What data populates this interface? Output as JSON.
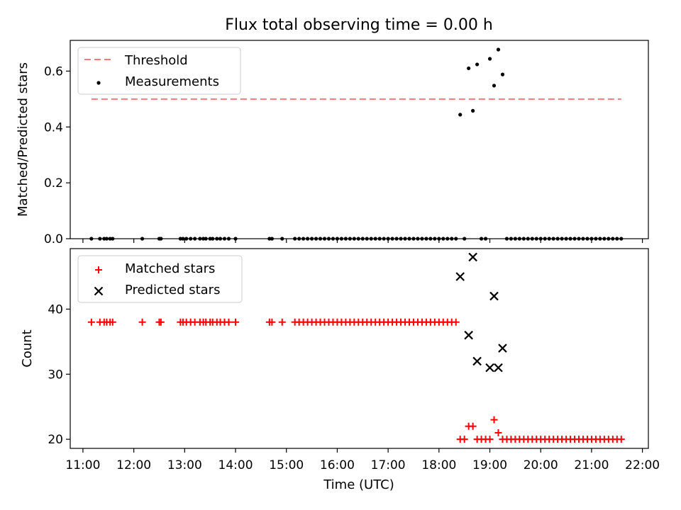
{
  "title": "Flux total observing time = 0.00 h",
  "xlabel": "Time (UTC)",
  "x_ticks": [
    "11:00",
    "12:00",
    "13:00",
    "14:00",
    "15:00",
    "16:00",
    "17:00",
    "18:00",
    "19:00",
    "20:00",
    "21:00",
    "22:00"
  ],
  "chart_data": [
    {
      "type": "scatter",
      "ylabel": "Matched/Predicted stars",
      "ylim": [
        0,
        0.71
      ],
      "yticks": [
        "0.0",
        "0.2",
        "0.4",
        "0.6"
      ],
      "legend": {
        "placement": "top-left",
        "entries": [
          "Threshold",
          "Measurements"
        ]
      },
      "threshold": {
        "name": "Threshold",
        "value": 0.5,
        "x": [
          "11:10",
          "21:35"
        ],
        "color": "#ff7777"
      },
      "series": [
        {
          "name": "Measurements",
          "color": "#000000",
          "points": [
            [
              "11:10",
              0
            ],
            [
              "11:20",
              0
            ],
            [
              "11:25",
              0
            ],
            [
              "11:28",
              0
            ],
            [
              "11:32",
              0
            ],
            [
              "11:35",
              0
            ],
            [
              "12:10",
              0
            ],
            [
              "12:30",
              0
            ],
            [
              "12:32",
              0
            ],
            [
              "12:55",
              0
            ],
            [
              "12:58",
              0
            ],
            [
              "13:02",
              0
            ],
            [
              "13:07",
              0
            ],
            [
              "13:12",
              0
            ],
            [
              "13:18",
              0
            ],
            [
              "13:22",
              0
            ],
            [
              "13:25",
              0
            ],
            [
              "13:30",
              0
            ],
            [
              "13:33",
              0
            ],
            [
              "13:38",
              0
            ],
            [
              "13:42",
              0
            ],
            [
              "13:47",
              0
            ],
            [
              "13:52",
              0
            ],
            [
              "14:00",
              0
            ],
            [
              "14:40",
              0
            ],
            [
              "14:43",
              0
            ],
            [
              "14:55",
              0
            ],
            [
              "15:10",
              0
            ],
            [
              "15:15",
              0
            ],
            [
              "15:20",
              0
            ],
            [
              "15:25",
              0
            ],
            [
              "15:30",
              0
            ],
            [
              "15:35",
              0
            ],
            [
              "15:40",
              0
            ],
            [
              "15:45",
              0
            ],
            [
              "15:50",
              0
            ],
            [
              "15:55",
              0
            ],
            [
              "16:00",
              0
            ],
            [
              "16:05",
              0
            ],
            [
              "16:10",
              0
            ],
            [
              "16:15",
              0
            ],
            [
              "16:20",
              0
            ],
            [
              "16:25",
              0
            ],
            [
              "16:30",
              0
            ],
            [
              "16:35",
              0
            ],
            [
              "16:40",
              0
            ],
            [
              "16:45",
              0
            ],
            [
              "16:50",
              0
            ],
            [
              "16:55",
              0
            ],
            [
              "17:00",
              0
            ],
            [
              "17:05",
              0
            ],
            [
              "17:10",
              0
            ],
            [
              "17:15",
              0
            ],
            [
              "17:20",
              0
            ],
            [
              "17:25",
              0
            ],
            [
              "17:30",
              0
            ],
            [
              "17:35",
              0
            ],
            [
              "17:40",
              0
            ],
            [
              "17:45",
              0
            ],
            [
              "17:50",
              0
            ],
            [
              "17:55",
              0
            ],
            [
              "18:00",
              0
            ],
            [
              "18:05",
              0
            ],
            [
              "18:10",
              0
            ],
            [
              "18:15",
              0
            ],
            [
              "18:20",
              0
            ],
            [
              "18:25",
              0.444
            ],
            [
              "18:30",
              0
            ],
            [
              "18:35",
              0.61
            ],
            [
              "18:40",
              0.458
            ],
            [
              "18:45",
              0.624
            ],
            [
              "18:50",
              0
            ],
            [
              "18:55",
              0
            ],
            [
              "19:00",
              0.644
            ],
            [
              "19:05",
              0.548
            ],
            [
              "19:10",
              0.677
            ],
            [
              "19:15",
              0.588
            ],
            [
              "19:20",
              0
            ],
            [
              "19:25",
              0
            ],
            [
              "19:30",
              0
            ],
            [
              "19:35",
              0
            ],
            [
              "19:40",
              0
            ],
            [
              "19:45",
              0
            ],
            [
              "19:50",
              0
            ],
            [
              "19:55",
              0
            ],
            [
              "20:00",
              0
            ],
            [
              "20:05",
              0
            ],
            [
              "20:10",
              0
            ],
            [
              "20:15",
              0
            ],
            [
              "20:20",
              0
            ],
            [
              "20:25",
              0
            ],
            [
              "20:30",
              0
            ],
            [
              "20:35",
              0
            ],
            [
              "20:40",
              0
            ],
            [
              "20:45",
              0
            ],
            [
              "20:50",
              0
            ],
            [
              "20:55",
              0
            ],
            [
              "21:00",
              0
            ],
            [
              "21:05",
              0
            ],
            [
              "21:10",
              0
            ],
            [
              "21:15",
              0
            ],
            [
              "21:20",
              0
            ],
            [
              "21:25",
              0
            ],
            [
              "21:30",
              0
            ],
            [
              "21:35",
              0
            ]
          ]
        }
      ]
    },
    {
      "type": "scatter",
      "ylabel": "Count",
      "ylim": [
        18.6,
        49.3
      ],
      "yticks": [
        "20",
        "30",
        "40"
      ],
      "legend": {
        "placement": "top-left",
        "entries": [
          "Matched stars",
          "Predicted stars"
        ]
      },
      "series": [
        {
          "name": "Matched stars",
          "marker": "+",
          "color": "#ff0000",
          "points": [
            [
              "11:10",
              38
            ],
            [
              "11:20",
              38
            ],
            [
              "11:25",
              38
            ],
            [
              "11:28",
              38
            ],
            [
              "11:32",
              38
            ],
            [
              "11:35",
              38
            ],
            [
              "12:10",
              38
            ],
            [
              "12:30",
              38
            ],
            [
              "12:32",
              38
            ],
            [
              "12:55",
              38
            ],
            [
              "12:58",
              38
            ],
            [
              "13:02",
              38
            ],
            [
              "13:07",
              38
            ],
            [
              "13:12",
              38
            ],
            [
              "13:18",
              38
            ],
            [
              "13:22",
              38
            ],
            [
              "13:25",
              38
            ],
            [
              "13:30",
              38
            ],
            [
              "13:33",
              38
            ],
            [
              "13:38",
              38
            ],
            [
              "13:42",
              38
            ],
            [
              "13:47",
              38
            ],
            [
              "13:52",
              38
            ],
            [
              "14:00",
              38
            ],
            [
              "14:40",
              38
            ],
            [
              "14:43",
              38
            ],
            [
              "14:55",
              38
            ],
            [
              "15:10",
              38
            ],
            [
              "15:15",
              38
            ],
            [
              "15:20",
              38
            ],
            [
              "15:25",
              38
            ],
            [
              "15:30",
              38
            ],
            [
              "15:35",
              38
            ],
            [
              "15:40",
              38
            ],
            [
              "15:45",
              38
            ],
            [
              "15:50",
              38
            ],
            [
              "15:55",
              38
            ],
            [
              "16:00",
              38
            ],
            [
              "16:05",
              38
            ],
            [
              "16:10",
              38
            ],
            [
              "16:15",
              38
            ],
            [
              "16:20",
              38
            ],
            [
              "16:25",
              38
            ],
            [
              "16:30",
              38
            ],
            [
              "16:35",
              38
            ],
            [
              "16:40",
              38
            ],
            [
              "16:45",
              38
            ],
            [
              "16:50",
              38
            ],
            [
              "16:55",
              38
            ],
            [
              "17:00",
              38
            ],
            [
              "17:05",
              38
            ],
            [
              "17:10",
              38
            ],
            [
              "17:15",
              38
            ],
            [
              "17:20",
              38
            ],
            [
              "17:25",
              38
            ],
            [
              "17:30",
              38
            ],
            [
              "17:35",
              38
            ],
            [
              "17:40",
              38
            ],
            [
              "17:45",
              38
            ],
            [
              "17:50",
              38
            ],
            [
              "17:55",
              38
            ],
            [
              "18:00",
              38
            ],
            [
              "18:05",
              38
            ],
            [
              "18:10",
              38
            ],
            [
              "18:15",
              38
            ],
            [
              "18:20",
              38
            ],
            [
              "18:25",
              20
            ],
            [
              "18:30",
              20
            ],
            [
              "18:35",
              22
            ],
            [
              "18:40",
              22
            ],
            [
              "18:45",
              20
            ],
            [
              "18:50",
              20
            ],
            [
              "18:55",
              20
            ],
            [
              "19:00",
              20
            ],
            [
              "19:05",
              23
            ],
            [
              "19:10",
              21
            ],
            [
              "19:15",
              20
            ],
            [
              "19:20",
              20
            ],
            [
              "19:25",
              20
            ],
            [
              "19:30",
              20
            ],
            [
              "19:35",
              20
            ],
            [
              "19:40",
              20
            ],
            [
              "19:45",
              20
            ],
            [
              "19:50",
              20
            ],
            [
              "19:55",
              20
            ],
            [
              "20:00",
              20
            ],
            [
              "20:05",
              20
            ],
            [
              "20:10",
              20
            ],
            [
              "20:15",
              20
            ],
            [
              "20:20",
              20
            ],
            [
              "20:25",
              20
            ],
            [
              "20:30",
              20
            ],
            [
              "20:35",
              20
            ],
            [
              "20:40",
              20
            ],
            [
              "20:45",
              20
            ],
            [
              "20:50",
              20
            ],
            [
              "20:55",
              20
            ],
            [
              "21:00",
              20
            ],
            [
              "21:05",
              20
            ],
            [
              "21:10",
              20
            ],
            [
              "21:15",
              20
            ],
            [
              "21:20",
              20
            ],
            [
              "21:25",
              20
            ],
            [
              "21:30",
              20
            ],
            [
              "21:35",
              20
            ]
          ]
        },
        {
          "name": "Predicted stars",
          "marker": "x",
          "color": "#000000",
          "points": [
            [
              "18:25",
              45
            ],
            [
              "18:35",
              36
            ],
            [
              "18:40",
              48
            ],
            [
              "18:45",
              32
            ],
            [
              "19:00",
              31
            ],
            [
              "19:05",
              42
            ],
            [
              "19:10",
              31
            ],
            [
              "19:15",
              34
            ]
          ]
        }
      ]
    }
  ]
}
